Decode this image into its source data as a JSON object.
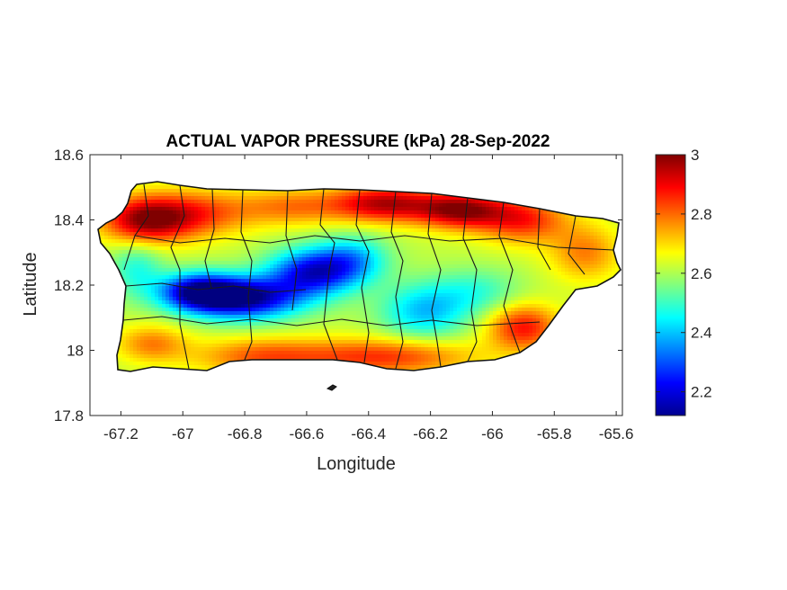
{
  "chart_data": {
    "type": "heatmap",
    "title": "ACTUAL VAPOR PRESSURE (kPa) 28-Sep-2022",
    "xlabel": "Longitude",
    "ylabel": "Latitude",
    "xlim": [
      -67.3,
      -65.58
    ],
    "ylim": [
      17.8,
      18.6
    ],
    "xticks": [
      -67.2,
      -67,
      -66.8,
      -66.6,
      -66.4,
      -66.2,
      -66,
      -65.8,
      -65.6
    ],
    "xtick_labels": [
      "-67.2",
      "-67",
      "-66.8",
      "-66.6",
      "-66.4",
      "-66.2",
      "-66",
      "-65.8",
      "-65.6"
    ],
    "yticks": [
      17.8,
      18,
      18.2,
      18.4,
      18.6
    ],
    "ytick_labels": [
      "17.8",
      "18",
      "18.2",
      "18.4",
      "18.6"
    ],
    "grid": false,
    "colorbar": {
      "colormap": "jet",
      "range": [
        2.12,
        3.0
      ],
      "ticks": [
        2.2,
        2.4,
        2.6,
        2.8,
        3
      ],
      "tick_labels": [
        "2.2",
        "2.4",
        "2.6",
        "2.8",
        "3"
      ],
      "placement": "right"
    },
    "field": {
      "region": "Puerto Rico",
      "base_value": 2.62,
      "features": [
        {
          "lon": -67.12,
          "lat": 18.4,
          "value": 2.97,
          "spread_lon": 0.1,
          "spread_lat": 0.05
        },
        {
          "lon": -66.95,
          "lat": 18.42,
          "value": 2.82,
          "spread_lon": 0.12,
          "spread_lat": 0.05
        },
        {
          "lon": -66.35,
          "lat": 18.45,
          "value": 2.95,
          "spread_lon": 0.12,
          "spread_lat": 0.04
        },
        {
          "lon": -66.1,
          "lat": 18.43,
          "value": 2.97,
          "spread_lon": 0.1,
          "spread_lat": 0.04
        },
        {
          "lon": -65.9,
          "lat": 18.4,
          "value": 2.86,
          "spread_lon": 0.1,
          "spread_lat": 0.05
        },
        {
          "lon": -66.65,
          "lat": 18.44,
          "value": 2.78,
          "spread_lon": 0.12,
          "spread_lat": 0.04
        },
        {
          "lon": -66.8,
          "lat": 18.16,
          "value": 2.14,
          "spread_lon": 0.13,
          "spread_lat": 0.045
        },
        {
          "lon": -66.95,
          "lat": 18.18,
          "value": 2.22,
          "spread_lon": 0.09,
          "spread_lat": 0.04
        },
        {
          "lon": -66.58,
          "lat": 18.24,
          "value": 2.22,
          "spread_lon": 0.1,
          "spread_lat": 0.05
        },
        {
          "lon": -66.45,
          "lat": 18.28,
          "value": 2.42,
          "spread_lon": 0.08,
          "spread_lat": 0.05
        },
        {
          "lon": -66.22,
          "lat": 18.12,
          "value": 2.4,
          "spread_lon": 0.1,
          "spread_lat": 0.06
        },
        {
          "lon": -66.05,
          "lat": 18.18,
          "value": 2.5,
          "spread_lon": 0.1,
          "spread_lat": 0.05
        },
        {
          "lon": -67.15,
          "lat": 18.25,
          "value": 2.48,
          "spread_lon": 0.06,
          "spread_lat": 0.06
        },
        {
          "lon": -65.9,
          "lat": 18.07,
          "value": 2.88,
          "spread_lon": 0.08,
          "spread_lat": 0.05
        },
        {
          "lon": -66.35,
          "lat": 17.98,
          "value": 2.85,
          "spread_lon": 0.2,
          "spread_lat": 0.04
        },
        {
          "lon": -66.75,
          "lat": 17.98,
          "value": 2.8,
          "spread_lon": 0.15,
          "spread_lat": 0.04
        },
        {
          "lon": -67.1,
          "lat": 18.02,
          "value": 2.78,
          "spread_lon": 0.08,
          "spread_lat": 0.04
        },
        {
          "lon": -65.7,
          "lat": 18.3,
          "value": 2.78,
          "spread_lon": 0.08,
          "spread_lat": 0.06
        }
      ]
    }
  }
}
